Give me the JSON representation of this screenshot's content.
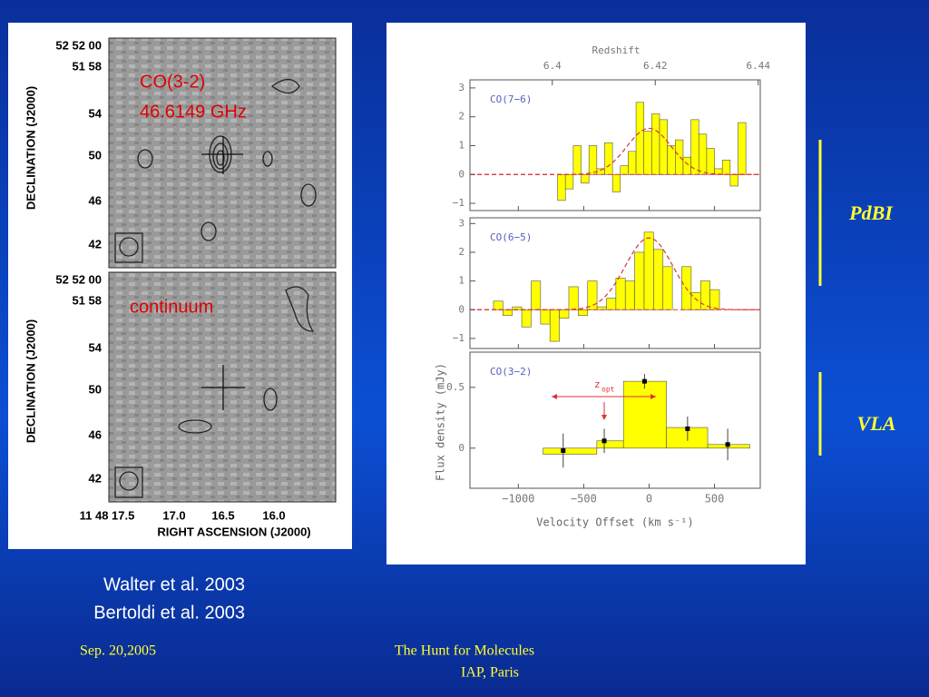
{
  "slide": {
    "refs": [
      "Walter et al. 2003",
      "Bertoldi et al. 2003"
    ],
    "footer_date": "Sep. 20,2005",
    "footer_title": "The Hunt for Molecules",
    "footer_place": "IAP, Paris",
    "side_labels": [
      "PdBI",
      "VLA"
    ]
  },
  "map": {
    "panels": [
      {
        "label_lines": [
          "CO(3-2)",
          "46.6149 GHz"
        ]
      },
      {
        "label_lines": [
          "continuum"
        ]
      }
    ],
    "dec_ticks": [
      "52 52 00",
      "51 58",
      "54",
      "50",
      "46",
      "42"
    ],
    "ra_ticks": [
      "11 48 17.5",
      "17.0",
      "16.5",
      "16.0"
    ],
    "ylabel": "DECLINATION (J2000)",
    "xlabel": "RIGHT ASCENSION (J2000)"
  },
  "spectra": {
    "top_axis_label": "Redshift",
    "zlim": [
      6.384,
      6.4404
    ],
    "zticks": [
      6.4,
      6.42,
      6.44
    ],
    "xlim": [
      -1370,
      850
    ],
    "xticks": [
      {
        "value": -1000,
        "label": "−1000"
      },
      {
        "value": -500,
        "label": "−500"
      },
      0,
      500
    ],
    "xlabel": "Velocity Offset (km s⁻¹)",
    "ylabel": "Flux density (mJy)",
    "z_marker": {
      "label": "z",
      "sub": "opt"
    },
    "panels": [
      {
        "name": "CO(7−6)",
        "ylim": [
          -1.25,
          3.28
        ],
        "yticks": [
          {
            "value": -1,
            "label": "−1"
          },
          0,
          1,
          2,
          3
        ],
        "bins": [
          -700,
          -640,
          -580,
          -520,
          -460,
          -400,
          -340,
          -280,
          -220,
          -160,
          -100,
          -40,
          20,
          80,
          140,
          200,
          260,
          320,
          380,
          440,
          500,
          560,
          620,
          680,
          740
        ],
        "values": [
          -0.9,
          -0.5,
          1.0,
          -0.3,
          1.0,
          0.2,
          1.1,
          -0.6,
          0.3,
          0.8,
          2.5,
          1.5,
          2.1,
          1.9,
          1.0,
          1.2,
          0.6,
          1.9,
          1.4,
          0.9,
          0.2,
          0.5,
          -0.4,
          1.8
        ],
        "fit": {
          "amplitude": 1.6,
          "center": 0,
          "fwhm": 400
        }
      },
      {
        "name": "CO(6−5)",
        "ylim": [
          -1.35,
          3.2
        ],
        "yticks": [
          {
            "value": -1,
            "label": "−1"
          },
          0,
          1,
          2,
          3
        ],
        "bins": [
          -1190,
          -1118,
          -1046,
          -974,
          -902,
          -830,
          -758,
          -686,
          -614,
          -542,
          -470,
          -398,
          -326,
          -254,
          -182,
          -110,
          -38,
          34,
          106,
          178,
          250,
          322,
          394,
          466,
          538
        ],
        "values": [
          0.3,
          -0.2,
          0.1,
          -0.6,
          1.0,
          -0.5,
          -1.1,
          -0.3,
          0.8,
          -0.2,
          1.0,
          0.1,
          0.4,
          1.1,
          1.0,
          2.0,
          2.7,
          2.1,
          1.5,
          0.0,
          1.5,
          0.6,
          1.0,
          0.7
        ],
        "fit": {
          "amplitude": 2.5,
          "center": 0,
          "fwhm": 430
        }
      },
      {
        "name": "CO(3−2)",
        "ylim": [
          -0.33,
          0.79
        ],
        "yticks": [
          0,
          0.5
        ],
        "bins": [
          -811,
          -400,
          -196,
          133,
          448,
          770
        ],
        "values": [
          -0.05,
          0.06,
          0.55,
          0.17,
          0.03
        ],
        "points": {
          "x": [
            -657,
            -343,
            -35,
            294,
            601
          ],
          "y": [
            -0.02,
            0.06,
            0.55,
            0.16,
            0.03
          ],
          "err": [
            0.14,
            0.1,
            0.06,
            0.1,
            0.13
          ]
        }
      }
    ]
  }
}
